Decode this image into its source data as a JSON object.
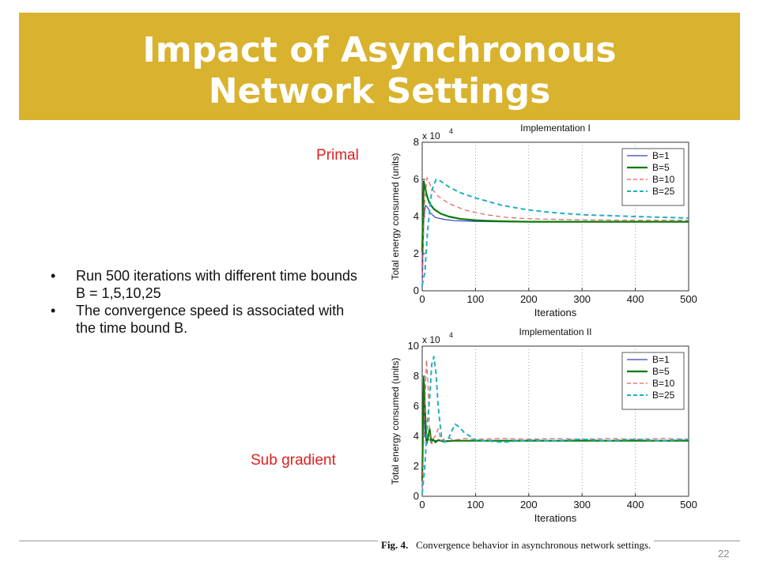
{
  "slide": {
    "title_line1": "Impact of Asynchronous",
    "title_line2": "Network Settings",
    "label_primal": "Primal",
    "label_subgradient": "Sub gradient",
    "bullets": [
      "Run 500 iterations with different time bounds B = 1,5,10,25",
      "The convergence speed is associated with the time bound B."
    ],
    "caption_fig": "Fig. 4.",
    "caption_text": "Convergence behavior in asynchronous network settings.",
    "slide_number": "22"
  },
  "chart_data": [
    {
      "type": "line",
      "title": "Implementation I",
      "xlabel": "Iterations",
      "ylabel": "Total energy consumed (units)",
      "multiplier": "x 10",
      "multiplier_exp": "4",
      "xlim": [
        0,
        500
      ],
      "ylim": [
        0,
        8
      ],
      "xticks": [
        0,
        100,
        200,
        300,
        400,
        500
      ],
      "yticks": [
        0,
        2,
        4,
        6,
        8
      ],
      "grid": "vertical dotted",
      "legend": "top-right",
      "series": [
        {
          "name": "B=1",
          "color": "#3340c0",
          "dash": "solid",
          "width": 1.2,
          "x": [
            0,
            3,
            6,
            10,
            15,
            25,
            40,
            60,
            100,
            150,
            200,
            300,
            400,
            500
          ],
          "y": [
            0.2,
            3.8,
            4.6,
            4.5,
            4.2,
            3.95,
            3.85,
            3.78,
            3.74,
            3.72,
            3.72,
            3.72,
            3.72,
            3.72
          ]
        },
        {
          "name": "B=5",
          "color": "#0a7a0a",
          "dash": "solid",
          "width": 2.2,
          "x": [
            0,
            3,
            6,
            9,
            14,
            22,
            35,
            50,
            70,
            100,
            130,
            160,
            200,
            300,
            400,
            500
          ],
          "y": [
            2.1,
            5.9,
            5.5,
            5.1,
            4.7,
            4.4,
            4.15,
            4.0,
            3.88,
            3.8,
            3.76,
            3.74,
            3.72,
            3.72,
            3.72,
            3.72
          ]
        },
        {
          "name": "B=10",
          "color": "#e06060",
          "dash": "dashed",
          "width": 1.2,
          "x": [
            0,
            4,
            9,
            12,
            18,
            30,
            50,
            80,
            120,
            160,
            200,
            300,
            400,
            500
          ],
          "y": [
            0.4,
            4.6,
            6.1,
            5.9,
            5.5,
            5.1,
            4.7,
            4.35,
            4.1,
            3.95,
            3.88,
            3.82,
            3.8,
            3.8
          ]
        },
        {
          "name": "B=25",
          "color": "#20b0c0",
          "dash": "dashed",
          "width": 2.0,
          "x": [
            0,
            5,
            10,
            18,
            26,
            35,
            50,
            70,
            100,
            150,
            200,
            250,
            300,
            400,
            500
          ],
          "y": [
            0.3,
            1.0,
            3.2,
            5.4,
            6.0,
            5.9,
            5.6,
            5.3,
            5.0,
            4.6,
            4.35,
            4.2,
            4.1,
            4.0,
            3.92
          ]
        }
      ]
    },
    {
      "type": "line",
      "title": "Implementation II",
      "xlabel": "Iterations",
      "ylabel": "Total energy consumed (units)",
      "multiplier": "x 10",
      "multiplier_exp": "4",
      "xlim": [
        0,
        500
      ],
      "ylim": [
        0,
        10
      ],
      "xticks": [
        0,
        100,
        200,
        300,
        400,
        500
      ],
      "yticks": [
        0,
        2,
        4,
        6,
        8,
        10
      ],
      "grid": "vertical dotted",
      "legend": "top-right",
      "series": [
        {
          "name": "B=1",
          "color": "#3340c0",
          "dash": "solid",
          "width": 1.2,
          "x": [
            0,
            2,
            4,
            6,
            9,
            14,
            20,
            30,
            50,
            100,
            200,
            300,
            400,
            500
          ],
          "y": [
            0.5,
            7.0,
            5.0,
            3.9,
            3.8,
            3.75,
            3.72,
            3.7,
            3.7,
            3.7,
            3.7,
            3.7,
            3.7,
            3.7
          ]
        },
        {
          "name": "B=5",
          "color": "#0a7a0a",
          "dash": "solid",
          "width": 2.2,
          "x": [
            0,
            3,
            5,
            8,
            11,
            14,
            17,
            20,
            25,
            30,
            40,
            60,
            100,
            200,
            300,
            400,
            500
          ],
          "y": [
            1.0,
            7.9,
            6.0,
            3.5,
            3.9,
            4.5,
            3.6,
            3.8,
            3.6,
            3.75,
            3.65,
            3.7,
            3.7,
            3.7,
            3.7,
            3.7,
            3.7
          ]
        },
        {
          "name": "B=10",
          "color": "#e06060",
          "dash": "dashed",
          "width": 1.2,
          "x": [
            0,
            4,
            8,
            11,
            14,
            18,
            22,
            26,
            30,
            35,
            40,
            50,
            60,
            80,
            100,
            150,
            200,
            250,
            300,
            350,
            400,
            450,
            500
          ],
          "y": [
            0.3,
            5.0,
            9.1,
            7.5,
            4.2,
            3.5,
            3.9,
            4.1,
            4.5,
            3.7,
            3.8,
            3.9,
            3.75,
            3.85,
            3.8,
            3.85,
            3.8,
            3.85,
            3.8,
            3.85,
            3.8,
            3.85,
            3.8
          ]
        },
        {
          "name": "B=25",
          "color": "#20b0c0",
          "dash": "dashed",
          "width": 2.0,
          "x": [
            0,
            5,
            10,
            14,
            18,
            22,
            26,
            30,
            36,
            42,
            50,
            56,
            62,
            70,
            80,
            90,
            100,
            120,
            150,
            200,
            250,
            300,
            350,
            400,
            450,
            500
          ],
          "y": [
            0.2,
            2.0,
            5.0,
            6.5,
            8.8,
            9.3,
            8.2,
            6.0,
            4.0,
            3.6,
            3.9,
            4.4,
            4.8,
            4.6,
            4.2,
            4.0,
            3.75,
            3.7,
            3.6,
            3.75,
            3.7,
            3.8,
            3.7,
            3.8,
            3.7,
            3.8
          ]
        }
      ]
    }
  ]
}
